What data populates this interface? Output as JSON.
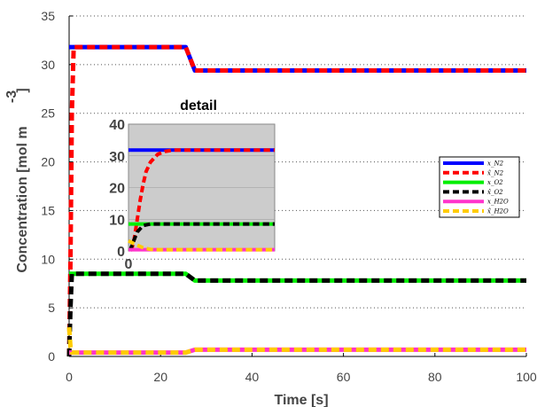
{
  "chart_data": [
    {
      "type": "line",
      "xlabel": "Time [s]",
      "ylabel": "Concentration [mol m",
      "ylabel_superscript": "-3",
      "ylabel_close": "]",
      "xlim": [
        0,
        100
      ],
      "ylim": [
        0,
        35
      ],
      "xticks": [
        0,
        20,
        40,
        60,
        80,
        100
      ],
      "yticks": [
        0,
        5,
        10,
        15,
        20,
        25,
        30,
        35
      ],
      "grid": "horizontal-dotted",
      "legend_placement": "right",
      "series": [
        {
          "name": "x_N2",
          "color": "#0000ff",
          "style": "solid",
          "points": [
            [
              0,
              31.8
            ],
            [
              25.5,
              31.8
            ],
            [
              27.5,
              29.4
            ],
            [
              100,
              29.4
            ]
          ]
        },
        {
          "name": "x̂_N2",
          "color": "#ff0000",
          "style": "dashed",
          "points": [
            [
              0,
              0
            ],
            [
              0.3,
              10
            ],
            [
              0.6,
              25
            ],
            [
              1.0,
              31.8
            ],
            [
              25.5,
              31.8
            ],
            [
              27.5,
              29.4
            ],
            [
              100,
              29.4
            ]
          ]
        },
        {
          "name": "x_O2",
          "color": "#00ee00",
          "style": "solid",
          "points": [
            [
              0,
              8.5
            ],
            [
              25.5,
              8.5
            ],
            [
              27.5,
              7.8
            ],
            [
              100,
              7.8
            ]
          ]
        },
        {
          "name": "x̂_O2",
          "color": "#000000",
          "style": "dashed",
          "points": [
            [
              0,
              0
            ],
            [
              0.3,
              5
            ],
            [
              0.6,
              8.5
            ],
            [
              25.5,
              8.5
            ],
            [
              27.5,
              7.8
            ],
            [
              100,
              7.8
            ]
          ]
        },
        {
          "name": "x_H2O",
          "color": "#ff33cc",
          "style": "solid",
          "points": [
            [
              0,
              0.4
            ],
            [
              25.5,
              0.4
            ],
            [
              27.5,
              0.7
            ],
            [
              100,
              0.7
            ]
          ]
        },
        {
          "name": "x̂_H2O",
          "color": "#ffcc00",
          "style": "dashed",
          "points": [
            [
              0,
              3.0
            ],
            [
              0.3,
              1.0
            ],
            [
              0.6,
              0.4
            ],
            [
              25.5,
              0.4
            ],
            [
              27.5,
              0.7
            ],
            [
              100,
              0.7
            ]
          ]
        }
      ]
    },
    {
      "type": "line",
      "title": "detail",
      "background": "#cccccc",
      "xlim": [
        0,
        1
      ],
      "ylim": [
        0,
        40
      ],
      "xticks": [
        0
      ],
      "yticks": [
        0,
        10,
        20,
        30,
        40
      ],
      "series": [
        {
          "name": "x_N2",
          "color": "#0000ff",
          "style": "solid",
          "points": [
            [
              0,
              31.8
            ],
            [
              1,
              31.8
            ]
          ]
        },
        {
          "name": "x̂_N2",
          "color": "#ff0000",
          "style": "dashed",
          "points": [
            [
              0.02,
              0
            ],
            [
              0.04,
              4
            ],
            [
              0.06,
              10
            ],
            [
              0.08,
              16
            ],
            [
              0.1,
              21
            ],
            [
              0.12,
              25
            ],
            [
              0.15,
              28
            ],
            [
              0.2,
              30.5
            ],
            [
              0.25,
              31.4
            ],
            [
              0.3,
              31.8
            ],
            [
              1,
              31.8
            ]
          ]
        },
        {
          "name": "x_O2",
          "color": "#00ee00",
          "style": "solid",
          "points": [
            [
              0,
              8.5
            ],
            [
              1,
              8.5
            ]
          ]
        },
        {
          "name": "x̂_O2",
          "color": "#000000",
          "style": "dashed",
          "points": [
            [
              0.01,
              0
            ],
            [
              0.03,
              2.5
            ],
            [
              0.06,
              6
            ],
            [
              0.1,
              8
            ],
            [
              0.15,
              8.5
            ],
            [
              1,
              8.5
            ]
          ]
        },
        {
          "name": "x_H2O",
          "color": "#ff33cc",
          "style": "solid",
          "points": [
            [
              0,
              0.4
            ],
            [
              1,
              0.4
            ]
          ]
        },
        {
          "name": "x̂_H2O",
          "color": "#ffcc00",
          "style": "dashed",
          "points": [
            [
              0,
              3.2
            ],
            [
              0.05,
              2.0
            ],
            [
              0.1,
              1.0
            ],
            [
              0.15,
              0.5
            ],
            [
              0.2,
              0.4
            ],
            [
              1,
              0.4
            ]
          ]
        }
      ]
    }
  ]
}
